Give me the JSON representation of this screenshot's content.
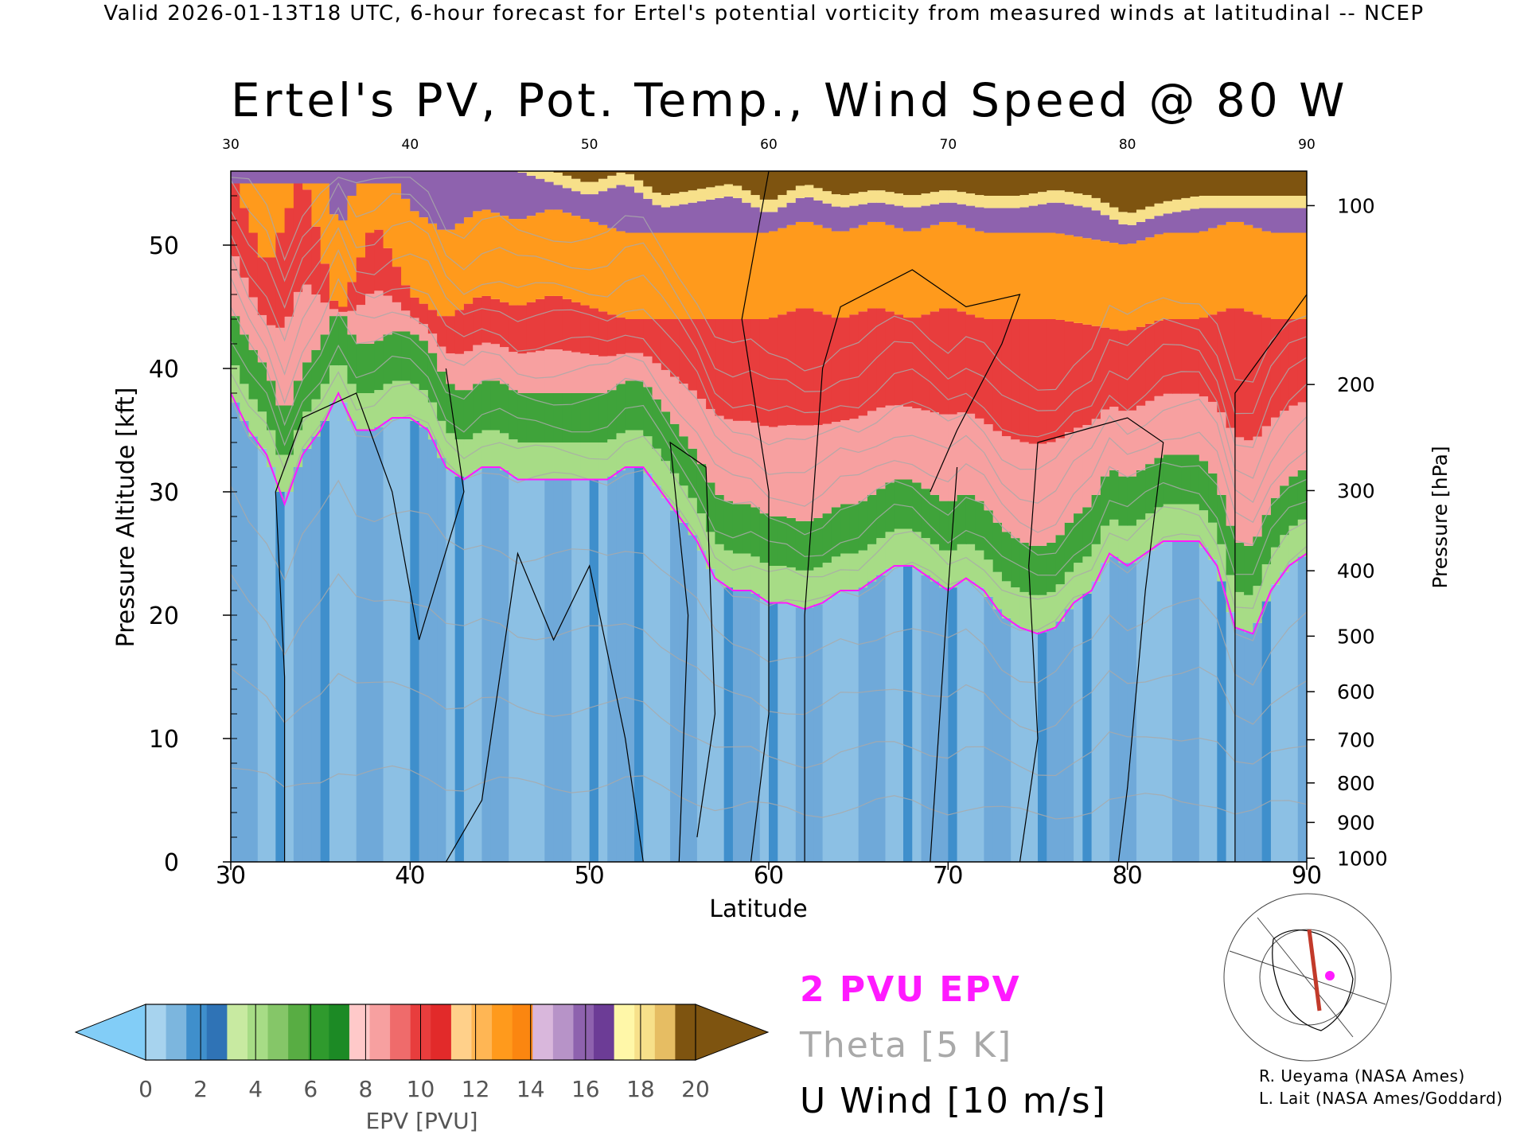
{
  "header": "Valid 2026-01-13T18 UTC, 6-hour forecast for Ertel's potential vorticity from measured winds at latitudinal -- NCEP",
  "title": "Ertel's PV, Pot. Temp., Wind Speed @ 80 W",
  "legend": {
    "pv_line": "2 PVU EPV",
    "theta_line": "Theta [5 K]",
    "wind_line": "U Wind [10 m/s]",
    "pv_color": "#ff1aff",
    "theta_color": "#a9a9a9"
  },
  "credits": [
    "R. Ueyama (NASA Ames)",
    "L. Lait (NASA Ames/Goddard)"
  ],
  "colorbar": {
    "label": "EPV [PVU]",
    "ticks": [
      "0",
      "2",
      "4",
      "6",
      "8",
      "10",
      "12",
      "14",
      "16",
      "18",
      "20"
    ],
    "under_color": "#82cdf7",
    "over_color": "#7e5410",
    "colors": [
      "#a7d3ee",
      "#7cb6de",
      "#3f8fcc",
      "#2f73b6",
      "#c8eaa1",
      "#a7dc86",
      "#85c668",
      "#58ad43",
      "#2f9a2d",
      "#1c8a25",
      "#ffc9c9",
      "#f7a0a0",
      "#ef6b6b",
      "#e83d3d",
      "#e22a2a",
      "#ffd08a",
      "#ffb654",
      "#ff9a1c",
      "#fb8610",
      "#d9b7dc",
      "#b793c8",
      "#8e62ae",
      "#6c3c96",
      "#fff7a8",
      "#f7e08a",
      "#e6bd63",
      "#7e5410"
    ]
  },
  "chart_data": {
    "type": "heatmap",
    "title": "Ertel's PV, Pot. Temp., Wind Speed @ 80 W",
    "xlabel": "Latitude",
    "ylabel": "Pressure Altitude [kft]",
    "y2label": "Pressure [hPa]",
    "xlim": [
      30,
      90
    ],
    "ylim": [
      0,
      56
    ],
    "x_ticks": [
      "30",
      "40",
      "50",
      "60",
      "70",
      "80",
      "90"
    ],
    "y_ticks": [
      "0",
      "10",
      "20",
      "30",
      "40",
      "50"
    ],
    "pressure_ticks": [
      {
        "label": "100",
        "kft": 53.2
      },
      {
        "label": "200",
        "kft": 38.7
      },
      {
        "label": "300",
        "kft": 30.1
      },
      {
        "label": "400",
        "kft": 23.6
      },
      {
        "label": "500",
        "kft": 18.3
      },
      {
        "label": "600",
        "kft": 13.8
      },
      {
        "label": "700",
        "kft": 9.9
      },
      {
        "label": "800",
        "kft": 6.4
      },
      {
        "label": "900",
        "kft": 3.2
      },
      {
        "label": "1000",
        "kft": 0.3
      }
    ],
    "pv_2pvu_altitude_kft": {
      "lat": [
        30,
        31,
        32,
        33,
        34,
        35,
        36,
        37,
        38,
        39,
        40,
        41,
        42,
        43,
        44,
        45,
        46,
        47,
        48,
        49,
        50,
        51,
        52,
        53,
        54,
        55,
        56,
        57,
        58,
        59,
        60,
        61,
        62,
        63,
        64,
        65,
        66,
        67,
        68,
        69,
        70,
        71,
        72,
        73,
        74,
        75,
        76,
        77,
        78,
        79,
        80,
        81,
        82,
        83,
        84,
        85,
        86,
        87,
        88,
        89,
        90
      ],
      "kft": [
        38,
        35,
        33,
        29,
        33,
        35,
        38,
        35,
        35,
        36,
        36,
        35,
        32,
        31,
        32,
        32,
        31,
        31,
        31,
        31,
        31,
        31,
        32,
        32,
        30,
        28,
        26,
        23,
        22,
        22,
        21,
        21,
        20.5,
        21,
        22,
        22,
        23,
        24,
        24,
        23,
        22,
        23,
        22,
        20,
        19,
        18.5,
        19,
        21,
        22,
        25,
        24,
        25,
        26,
        26,
        26,
        24,
        19,
        18.5,
        22,
        24,
        25
      ]
    },
    "top_band_altitude_kft": {
      "lat": [
        30,
        32,
        34,
        36,
        38,
        40,
        42,
        44,
        46,
        48,
        50,
        52,
        54,
        56,
        58,
        60,
        62,
        64,
        66,
        68,
        70,
        72,
        74,
        76,
        78,
        80,
        82,
        84,
        86,
        88,
        90
      ],
      "purple_kft": [
        56,
        56,
        56,
        56,
        56,
        56,
        56,
        56,
        56,
        55,
        54,
        55,
        53,
        53.5,
        54,
        52.5,
        54,
        53,
        53.5,
        53,
        53.5,
        53,
        53,
        53.5,
        53,
        51.5,
        52.5,
        53,
        53,
        53,
        53
      ],
      "red_kft": [
        56,
        48,
        56,
        44,
        52,
        46,
        44,
        46,
        45,
        46,
        45,
        44,
        44,
        44,
        44,
        44,
        45,
        44,
        45,
        44,
        45,
        44,
        44,
        44,
        43.5,
        43,
        44,
        44,
        45,
        44,
        44
      ]
    },
    "u_wind_contours_m_per_s": [
      "0",
      "10",
      "30"
    ],
    "theta_contours_K": [
      "250",
      "330",
      "340",
      "360",
      "370",
      "380",
      "400",
      "470"
    ],
    "grid": false
  }
}
